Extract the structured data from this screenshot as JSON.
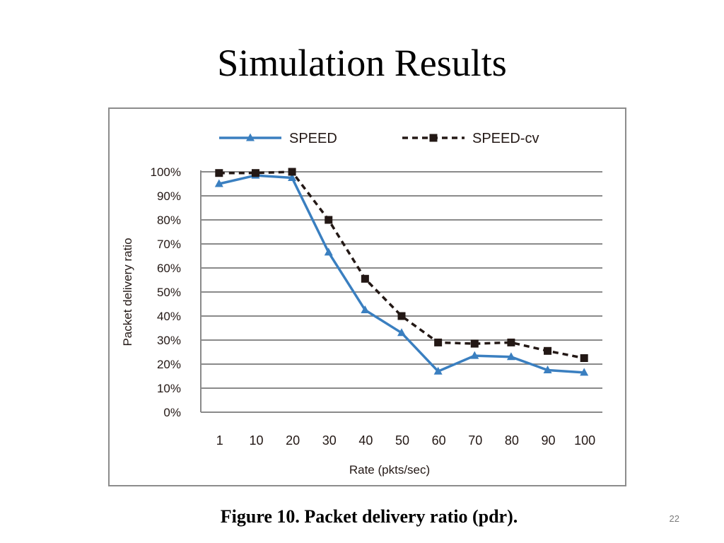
{
  "slide": {
    "title": "Simulation Results",
    "caption": "Figure 10. Packet delivery ratio (pdr).",
    "page_number": "22"
  },
  "chart_data": {
    "type": "line",
    "xlabel": "Rate (pkts/sec)",
    "ylabel": "Packet delivery ratio",
    "categories": [
      "1",
      "10",
      "20",
      "30",
      "40",
      "50",
      "60",
      "70",
      "80",
      "90",
      "100"
    ],
    "yticks": [
      "0%",
      "10%",
      "20%",
      "30%",
      "40%",
      "50%",
      "60%",
      "70%",
      "80%",
      "90%",
      "100%"
    ],
    "ylim": [
      0,
      100
    ],
    "grid": true,
    "legend_position": "top",
    "series": [
      {
        "name": "SPEED",
        "color": "#3a7fc0",
        "line_style": "solid",
        "marker": "triangle",
        "values": [
          95,
          98.5,
          97.5,
          66.5,
          42.5,
          33,
          17,
          23.5,
          23,
          17.5,
          16.5
        ]
      },
      {
        "name": "SPEED-cv",
        "color": "#231815",
        "line_style": "dashed",
        "marker": "square",
        "values": [
          99.5,
          99.5,
          100,
          80,
          55.5,
          40,
          29,
          28.5,
          29,
          25.5,
          22.5
        ]
      }
    ]
  }
}
